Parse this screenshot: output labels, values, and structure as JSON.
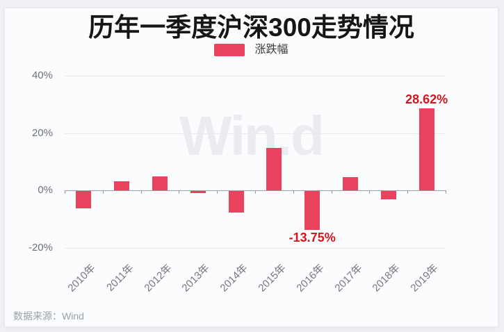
{
  "card": {
    "title": "历年一季度沪深300走势情况",
    "legend_label": "涨跌幅",
    "watermark": "Win.d",
    "source_note": "数据来源：Wind"
  },
  "chart_data": {
    "type": "bar",
    "title": "历年一季度沪深300走势情况",
    "series_name": "涨跌幅",
    "unit": "%",
    "categories": [
      "2010年",
      "2011年",
      "2012年",
      "2013年",
      "2014年",
      "2015年",
      "2016年",
      "2017年",
      "2018年",
      "2019年"
    ],
    "values": [
      -6.3,
      3.1,
      4.8,
      -1.0,
      -7.8,
      14.8,
      -13.75,
      4.6,
      -3.2,
      28.62
    ],
    "y_ticks": [
      {
        "value": 40,
        "label": "40%"
      },
      {
        "value": 20,
        "label": "20%"
      },
      {
        "value": 0,
        "label": "0%"
      },
      {
        "value": -20,
        "label": "-20%"
      }
    ],
    "ylim": [
      -27,
      45
    ],
    "grid": true,
    "legend_position": "top",
    "bar_color": "#e8425f",
    "annotation_color": "#d1161f",
    "annotations": [
      {
        "category": "2016年",
        "index": 6,
        "text": "-13.75%",
        "position": "below"
      },
      {
        "category": "2019年",
        "index": 9,
        "text": "28.62%",
        "position": "above"
      }
    ]
  }
}
